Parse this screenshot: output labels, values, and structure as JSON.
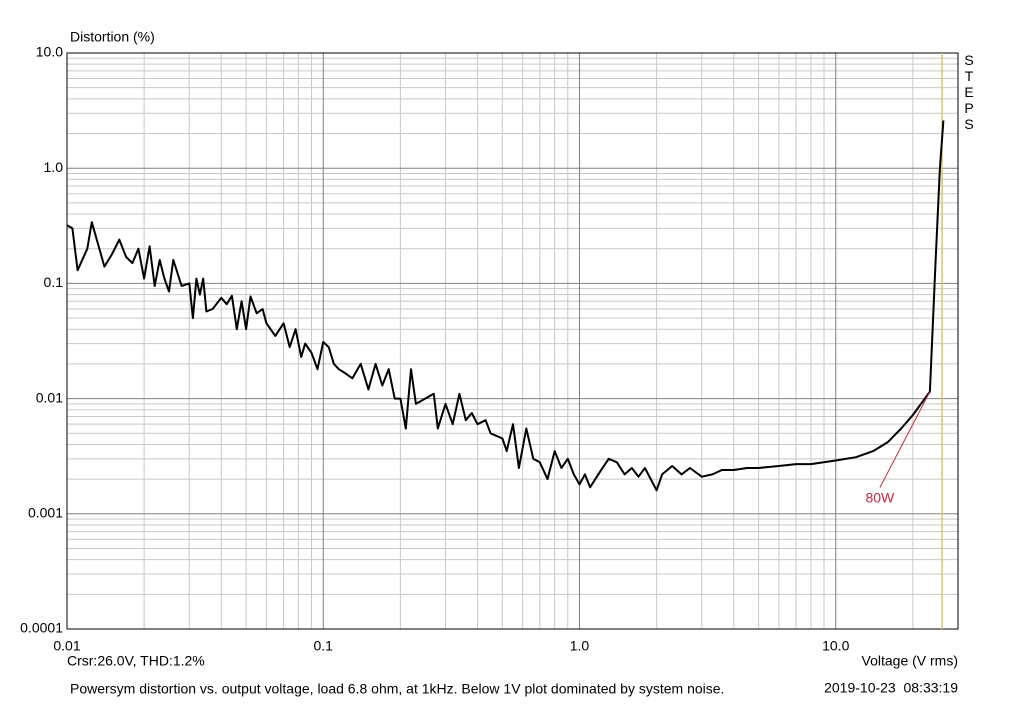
{
  "chart_data": {
    "type": "line",
    "y_label": "Distortion (%)",
    "x_label": "Voltage (V rms)",
    "cursor_readout": "Crsr:26.0V, THD:1.2%",
    "side_label": "STEPS",
    "caption": "Powersym distortion vs. output voltage, load 6.8 ohm, at 1kHz. Below 1V plot dominated by system noise.",
    "timestamp": "2019-10-23  08:33:19",
    "log_x": true,
    "log_y": true,
    "grid": true,
    "minor_grid": true,
    "xlim": [
      0.01,
      30
    ],
    "ylim": [
      0.0001,
      10
    ],
    "xticks": [
      0.01,
      0.1,
      {
        "value": 1,
        "label": "1.0"
      },
      {
        "value": 10,
        "label": "10.0"
      }
    ],
    "yticks": [
      0.0001,
      0.001,
      0.01,
      0.1,
      {
        "value": 1,
        "label": "1.0"
      },
      {
        "value": 10,
        "label": "10.0"
      }
    ],
    "color": "#000000",
    "cursor": {
      "x": 26.0,
      "color": "#d9c85a"
    },
    "annotation": {
      "text": "80W",
      "x": 23.3,
      "y": 0.0115,
      "color": "#c8283c"
    },
    "x": [
      0.01,
      0.0105,
      0.011,
      0.012,
      0.0125,
      0.013,
      0.014,
      0.015,
      0.016,
      0.017,
      0.018,
      0.019,
      0.02,
      0.021,
      0.022,
      0.023,
      0.024,
      0.025,
      0.026,
      0.028,
      0.03,
      0.031,
      0.032,
      0.033,
      0.034,
      0.035,
      0.037,
      0.04,
      0.042,
      0.044,
      0.046,
      0.048,
      0.05,
      0.052,
      0.055,
      0.058,
      0.06,
      0.065,
      0.07,
      0.074,
      0.078,
      0.082,
      0.085,
      0.09,
      0.095,
      0.1,
      0.105,
      0.11,
      0.115,
      0.12,
      0.13,
      0.14,
      0.15,
      0.16,
      0.17,
      0.18,
      0.19,
      0.2,
      0.21,
      0.22,
      0.23,
      0.25,
      0.27,
      0.28,
      0.3,
      0.32,
      0.34,
      0.36,
      0.38,
      0.4,
      0.43,
      0.45,
      0.5,
      0.52,
      0.55,
      0.58,
      0.62,
      0.66,
      0.7,
      0.75,
      0.8,
      0.85,
      0.9,
      0.95,
      1.0,
      1.05,
      1.1,
      1.2,
      1.3,
      1.4,
      1.5,
      1.6,
      1.7,
      1.8,
      2.0,
      2.1,
      2.3,
      2.5,
      2.7,
      3.0,
      3.3,
      3.6,
      4.0,
      4.5,
      5.0,
      6.0,
      7.0,
      8.0,
      10,
      12,
      14,
      16,
      18,
      20,
      23.3,
      24.5,
      25.5,
      26.3
    ],
    "values": [
      0.32,
      0.3,
      0.13,
      0.2,
      0.34,
      0.25,
      0.14,
      0.18,
      0.24,
      0.17,
      0.15,
      0.2,
      0.11,
      0.21,
      0.095,
      0.16,
      0.11,
      0.085,
      0.16,
      0.095,
      0.1,
      0.05,
      0.11,
      0.08,
      0.11,
      0.057,
      0.06,
      0.075,
      0.066,
      0.078,
      0.04,
      0.07,
      0.04,
      0.077,
      0.055,
      0.06,
      0.045,
      0.035,
      0.045,
      0.028,
      0.04,
      0.023,
      0.03,
      0.025,
      0.018,
      0.031,
      0.028,
      0.02,
      0.018,
      0.017,
      0.015,
      0.02,
      0.012,
      0.02,
      0.013,
      0.018,
      0.01,
      0.01,
      0.0055,
      0.018,
      0.009,
      0.01,
      0.011,
      0.0055,
      0.009,
      0.006,
      0.011,
      0.0065,
      0.0075,
      0.006,
      0.0065,
      0.005,
      0.0045,
      0.0035,
      0.006,
      0.0025,
      0.0055,
      0.003,
      0.0028,
      0.002,
      0.0035,
      0.0025,
      0.003,
      0.0022,
      0.0018,
      0.0022,
      0.0017,
      0.0023,
      0.003,
      0.0028,
      0.0022,
      0.0025,
      0.0021,
      0.0025,
      0.0016,
      0.0022,
      0.0026,
      0.0022,
      0.0025,
      0.0021,
      0.0022,
      0.0024,
      0.0024,
      0.0025,
      0.0025,
      0.0026,
      0.0027,
      0.0027,
      0.0029,
      0.0031,
      0.0035,
      0.0042,
      0.0055,
      0.0072,
      0.0115,
      0.15,
      1.0,
      2.6
    ]
  }
}
